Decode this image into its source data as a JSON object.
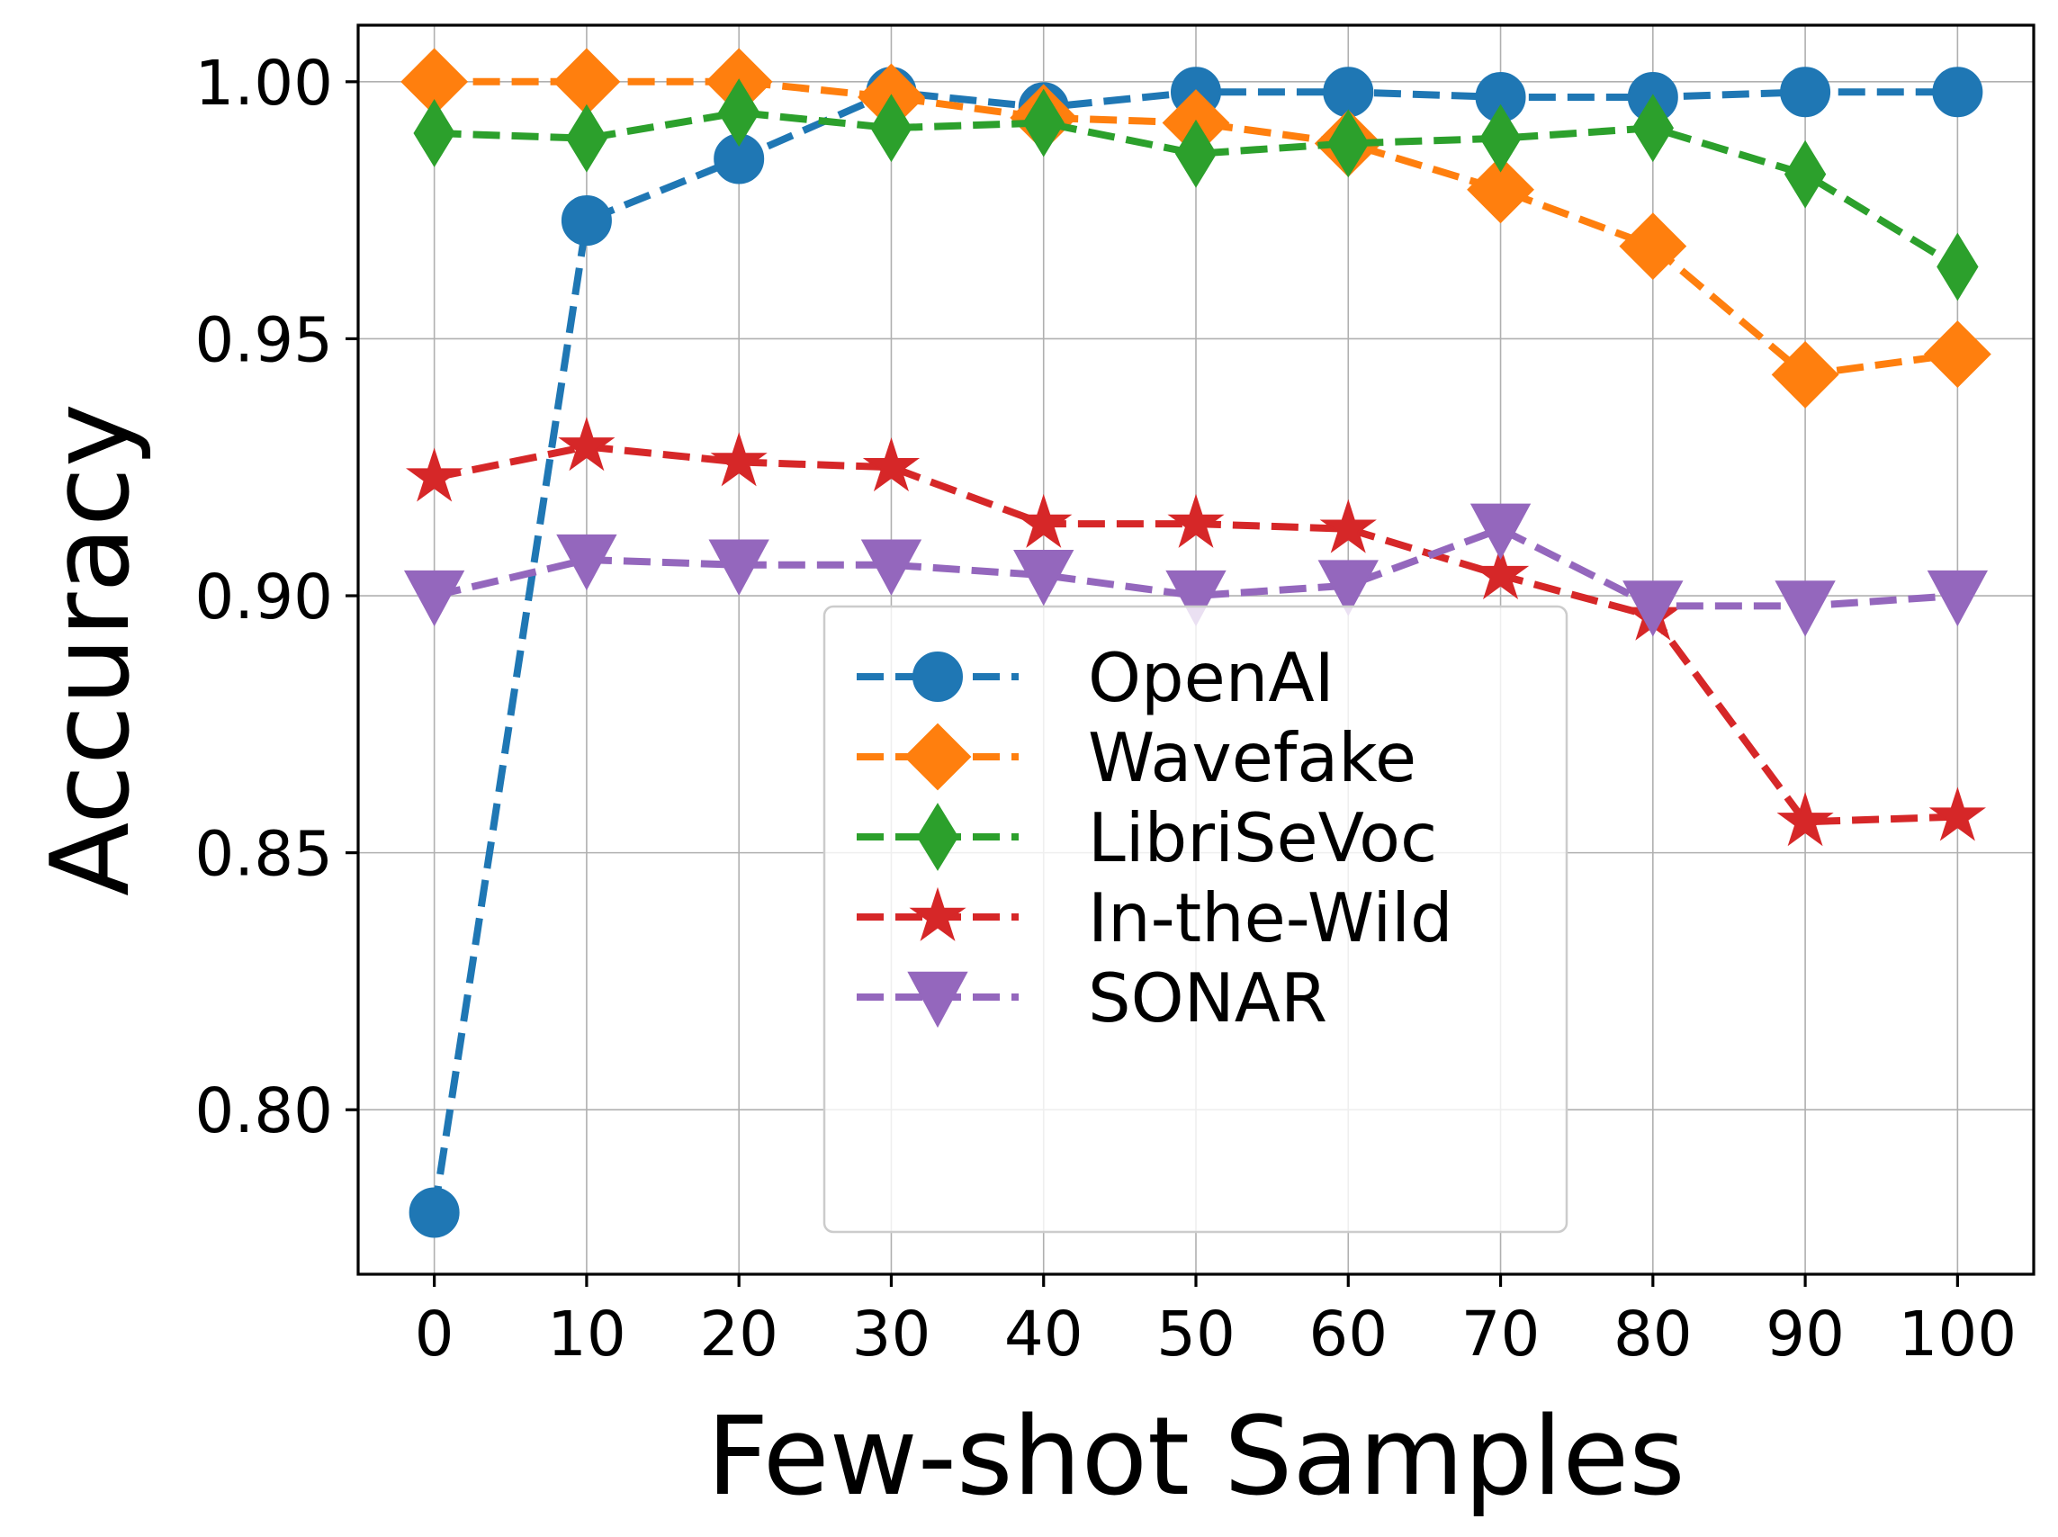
{
  "chart_data": {
    "type": "line",
    "title": "",
    "xlabel": "Few-shot Samples",
    "ylabel": "Accuracy",
    "x": [
      0,
      10,
      20,
      30,
      40,
      50,
      60,
      70,
      80,
      90,
      100
    ],
    "xticks": [
      "0",
      "10",
      "20",
      "30",
      "40",
      "50",
      "60",
      "70",
      "80",
      "90",
      "100"
    ],
    "yticks": [
      0.8,
      0.85,
      0.9,
      0.95,
      1.0
    ],
    "ytick_labels": [
      "0.80",
      "0.85",
      "0.90",
      "0.95",
      "1.00"
    ],
    "xlim": [
      -5,
      105
    ],
    "ylim": [
      0.768,
      1.011
    ],
    "grid": true,
    "legend_position": "lower-center",
    "series": [
      {
        "name": "OpenAI",
        "marker": "circle",
        "color": "#1f77b4",
        "values": [
          0.78,
          0.973,
          0.985,
          0.998,
          0.995,
          0.998,
          0.998,
          0.997,
          0.997,
          0.998,
          0.998
        ]
      },
      {
        "name": "Wavefake",
        "marker": "diamond",
        "color": "#ff7f0e",
        "values": [
          1.0,
          1.0,
          1.0,
          0.997,
          0.993,
          0.992,
          0.988,
          0.979,
          0.968,
          0.943,
          0.947
        ]
      },
      {
        "name": "LibriSeVoc",
        "marker": "thin-diamond",
        "color": "#2ca02c",
        "values": [
          0.99,
          0.989,
          0.994,
          0.991,
          0.992,
          0.986,
          0.988,
          0.989,
          0.991,
          0.982,
          0.964
        ]
      },
      {
        "name": "In-the-Wild",
        "marker": "star",
        "color": "#d62728",
        "values": [
          0.923,
          0.929,
          0.926,
          0.925,
          0.914,
          0.914,
          0.913,
          0.904,
          0.896,
          0.856,
          0.857
        ]
      },
      {
        "name": "SONAR",
        "marker": "triangle-down",
        "color": "#9467bd",
        "values": [
          0.9,
          0.907,
          0.906,
          0.906,
          0.904,
          0.9,
          0.902,
          0.913,
          0.898,
          0.898,
          0.9
        ]
      }
    ]
  }
}
